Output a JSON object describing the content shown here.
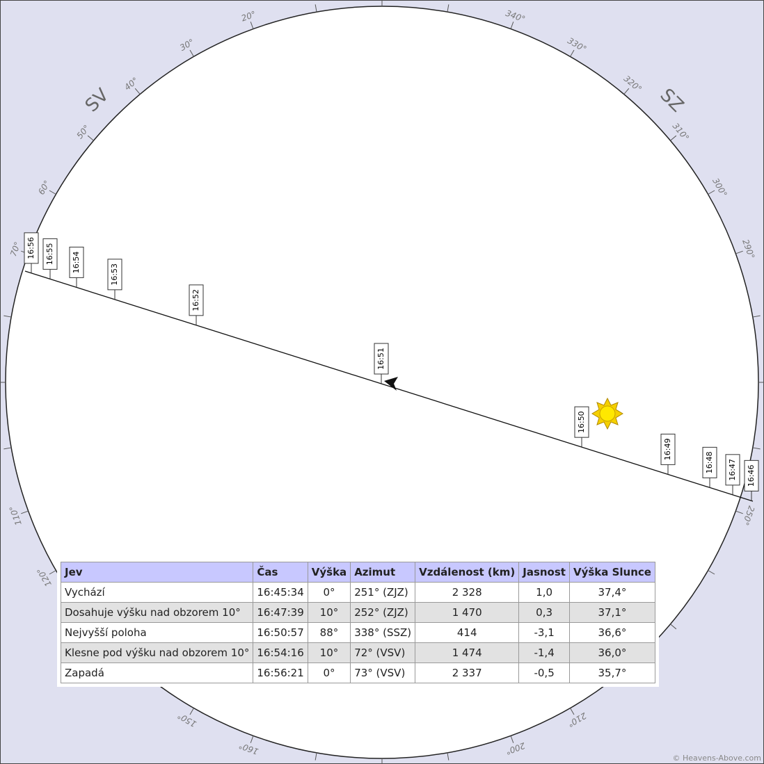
{
  "azimuth_labels": [
    "20°",
    "30°",
    "40°",
    "50°",
    "60°",
    "70°",
    "110°",
    "120°",
    "150°",
    "160°",
    "200°",
    "210°",
    "250°",
    "290°",
    "300°",
    "310°",
    "320°",
    "330°",
    "340°"
  ],
  "directions": {
    "northeast": "SV",
    "northwest": "SZ"
  },
  "pass_times": [
    "16:46",
    "16:47",
    "16:48",
    "16:49",
    "16:50",
    "16:51",
    "16:52",
    "16:53",
    "16:54",
    "16:55",
    "16:56"
  ],
  "table": {
    "header": [
      "Jev",
      "Čas",
      "Výška",
      "Azimut",
      "Vzdálenost (km)",
      "Jasnost",
      "Výška Slunce"
    ],
    "rows": [
      [
        "Vychází",
        "16:45:34",
        "0°",
        "251° (ZJZ)",
        "2 328",
        "1,0",
        "37,4°"
      ],
      [
        "Dosahuje výšku nad obzorem 10°",
        "16:47:39",
        "10°",
        "252° (ZJZ)",
        "1 470",
        "0,3",
        "37,1°"
      ],
      [
        "Nejvyšší poloha",
        "16:50:57",
        "88°",
        "338° (SSZ)",
        "414",
        "-3,1",
        "36,6°"
      ],
      [
        "Klesne pod výšku nad obzorem 10°",
        "16:54:16",
        "10°",
        "72° (VSV)",
        "1 474",
        "-1,4",
        "36,0°"
      ],
      [
        "Zapadá",
        "16:56:21",
        "0°",
        "73° (VSV)",
        "2 337",
        "-0,5",
        "35,7°"
      ]
    ]
  },
  "credit": "© Heavens-Above.com"
}
